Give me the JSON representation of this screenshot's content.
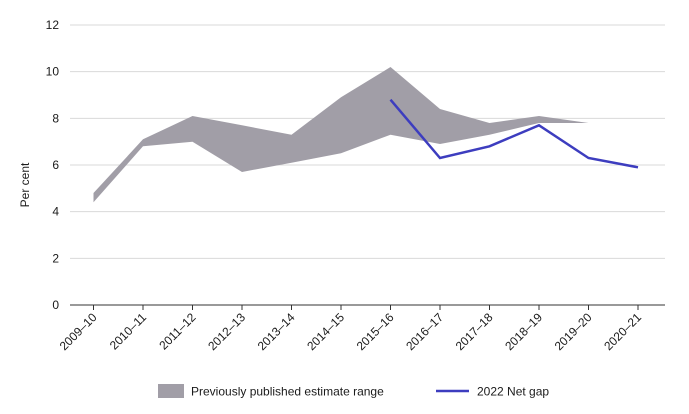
{
  "chart_data": {
    "type": "line",
    "categories": [
      "2009–10",
      "2010–11",
      "2011–12",
      "2012–13",
      "2013–14",
      "2014–15",
      "2015–16",
      "2016–17",
      "2017–18",
      "2018–19",
      "2019–20",
      "2020–21"
    ],
    "series": [
      {
        "name": "Previously published estimate range",
        "kind": "area-range",
        "color": "#a19ea7",
        "upper": [
          4.8,
          7.1,
          8.1,
          7.7,
          7.3,
          8.9,
          10.2,
          8.4,
          7.8,
          8.1,
          7.8,
          null
        ],
        "lower": [
          4.4,
          6.8,
          7.0,
          5.7,
          6.1,
          6.5,
          7.3,
          6.9,
          7.3,
          7.8,
          7.8,
          null
        ]
      },
      {
        "name": "2022 Net gap",
        "kind": "line",
        "color": "#3d3dbf",
        "values": [
          null,
          null,
          null,
          null,
          null,
          null,
          8.8,
          6.3,
          6.8,
          7.7,
          6.3,
          5.9
        ]
      }
    ],
    "xlabel": "",
    "ylabel": "Per cent",
    "ylim": [
      0,
      12
    ],
    "yticks": [
      0,
      2,
      4,
      6,
      8,
      10,
      12
    ],
    "grid": "horizontal",
    "legend": "bottom"
  }
}
